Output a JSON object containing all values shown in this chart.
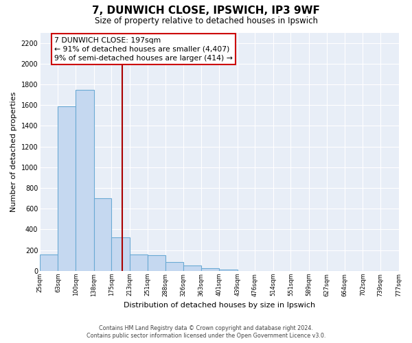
{
  "title": "7, DUNWICH CLOSE, IPSWICH, IP3 9WF",
  "subtitle": "Size of property relative to detached houses in Ipswich",
  "xlabel": "Distribution of detached houses by size in Ipswich",
  "ylabel": "Number of detached properties",
  "bar_edges": [
    25,
    63,
    100,
    138,
    175,
    213,
    251,
    288,
    326,
    363,
    401,
    439,
    476,
    514,
    551,
    589,
    627,
    664,
    702,
    739,
    777
  ],
  "bar_heights": [
    160,
    1590,
    1750,
    700,
    325,
    160,
    150,
    85,
    50,
    25,
    15,
    0,
    0,
    0,
    0,
    0,
    0,
    0,
    0,
    0
  ],
  "bar_color": "#c5d8f0",
  "bar_edge_color": "#6aaad4",
  "vline_color": "#aa0000",
  "vline_x": 197,
  "annotation_title": "7 DUNWICH CLOSE: 197sqm",
  "annotation_line1": "← 91% of detached houses are smaller (4,407)",
  "annotation_line2": "9% of semi-detached houses are larger (414) →",
  "ylim": [
    0,
    2300
  ],
  "yticks": [
    0,
    200,
    400,
    600,
    800,
    1000,
    1200,
    1400,
    1600,
    1800,
    2000,
    2200
  ],
  "tick_labels": [
    "25sqm",
    "63sqm",
    "100sqm",
    "138sqm",
    "175sqm",
    "213sqm",
    "251sqm",
    "288sqm",
    "326sqm",
    "363sqm",
    "401sqm",
    "439sqm",
    "476sqm",
    "514sqm",
    "551sqm",
    "589sqm",
    "627sqm",
    "664sqm",
    "702sqm",
    "739sqm",
    "777sqm"
  ],
  "footer_line1": "Contains HM Land Registry data © Crown copyright and database right 2024.",
  "footer_line2": "Contains public sector information licensed under the Open Government Licence v3.0.",
  "bg_color": "#ffffff",
  "plot_bg_color": "#e8eef7",
  "grid_color": "#ffffff"
}
